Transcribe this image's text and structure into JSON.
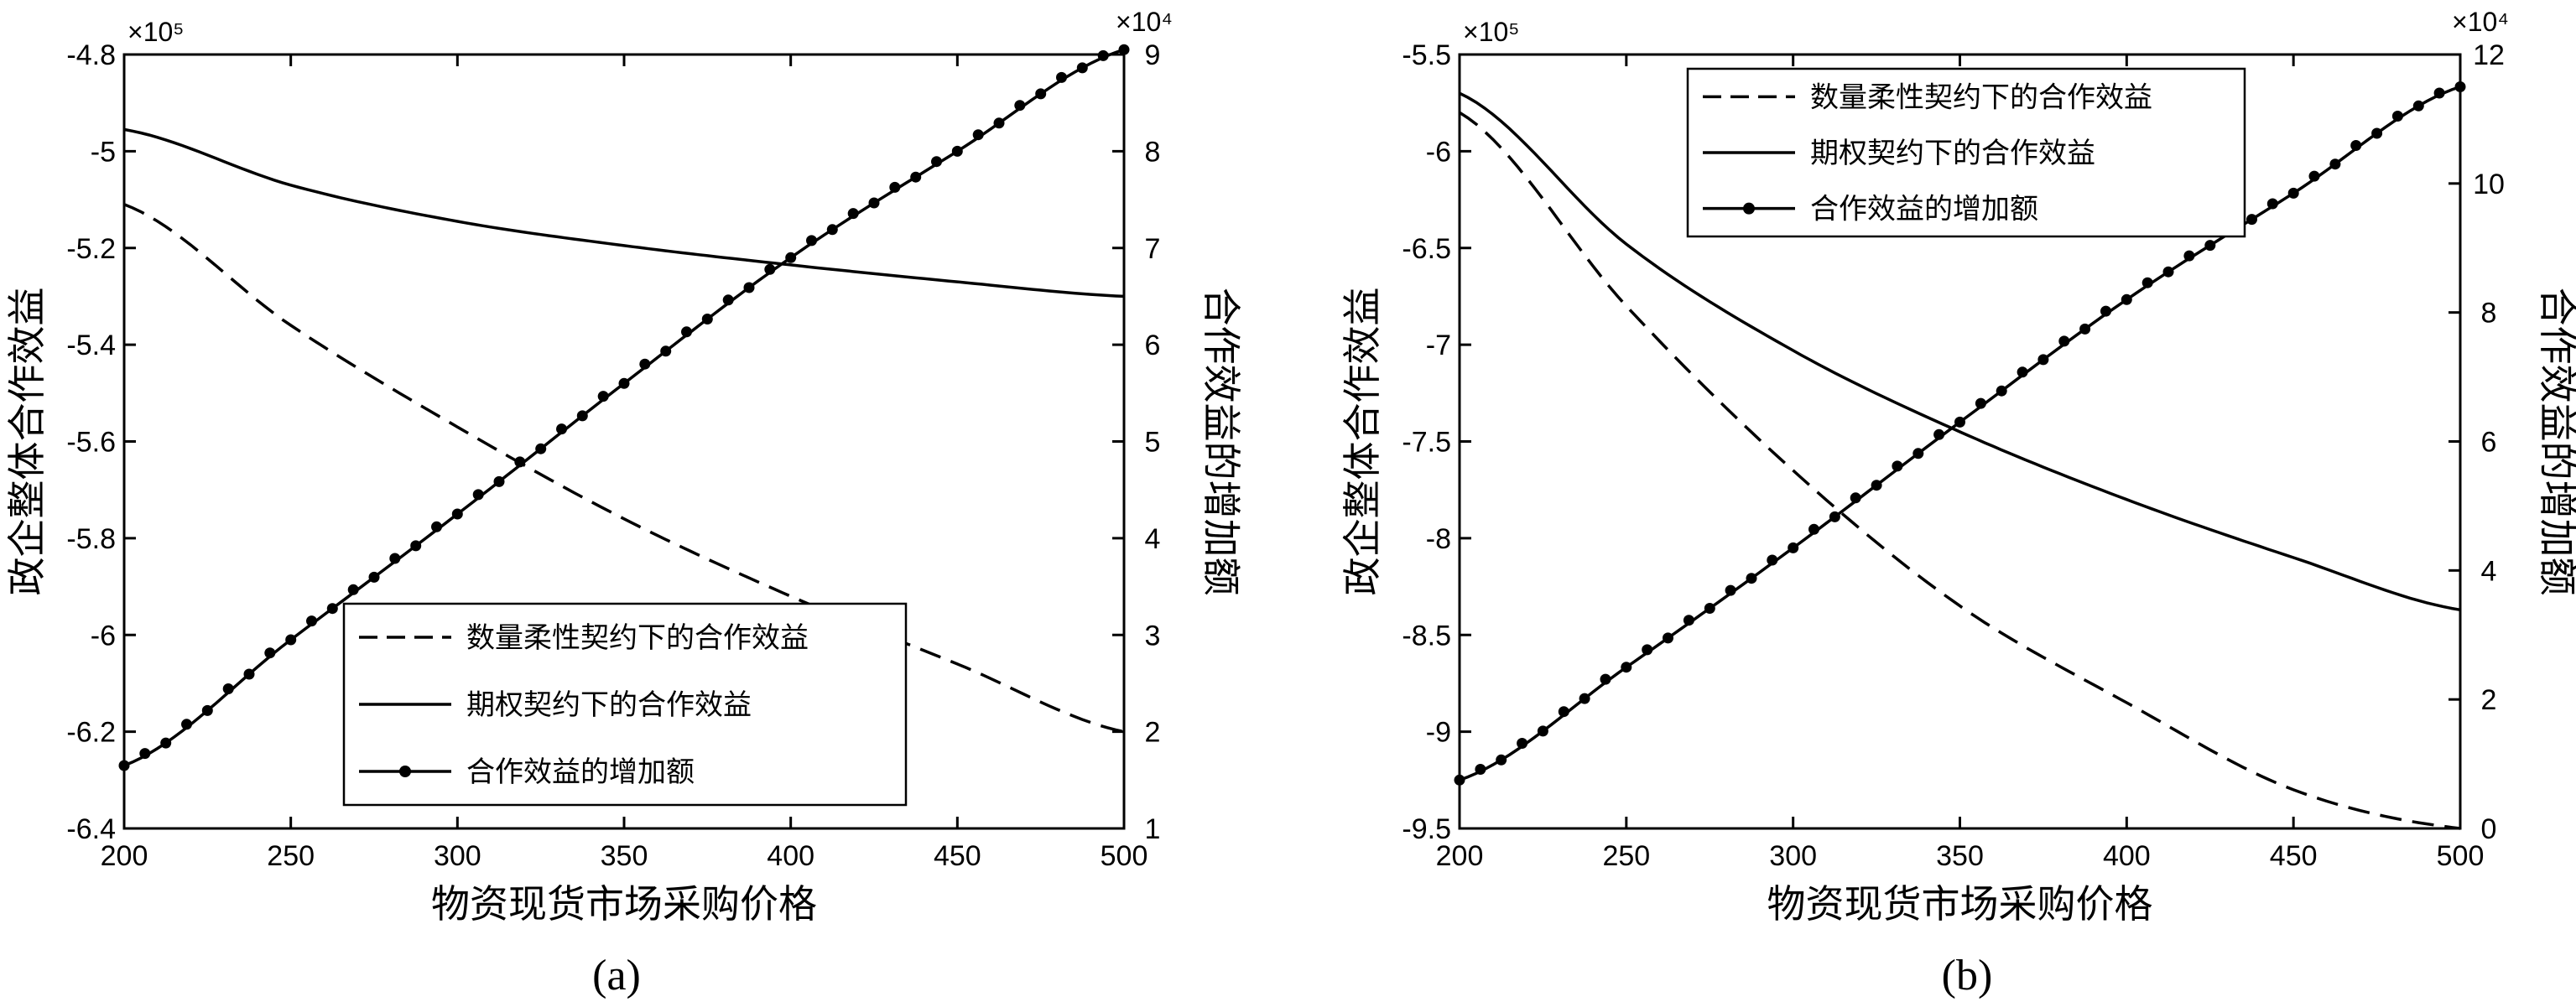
{
  "chart_data": [
    {
      "type": "line",
      "caption": "(a)",
      "xlabel": "物资现货市场采购价格",
      "ylabel_left": "政企整体合作效益",
      "ylabel_right": "合作效益的增加额",
      "left_multiplier": "×10⁵",
      "right_multiplier": "×10⁴",
      "xlim": [
        200,
        500
      ],
      "ylim_left": [
        -640000,
        -480000
      ],
      "ylim_right": [
        10000,
        90000
      ],
      "x_ticks": [
        200,
        250,
        300,
        350,
        400,
        450,
        500
      ],
      "x_tick_labels": [
        "200",
        "250",
        "300",
        "350",
        "400",
        "450",
        "500"
      ],
      "yleft_ticks": [
        -640000,
        -620000,
        -600000,
        -580000,
        -560000,
        -540000,
        -520000,
        -500000,
        -480000
      ],
      "yleft_tick_labels": [
        "-6.4",
        "-6.2",
        "-6",
        "-5.8",
        "-5.6",
        "-5.4",
        "-5.2",
        "-5",
        "-4.8"
      ],
      "yright_ticks": [
        10000,
        20000,
        30000,
        40000,
        50000,
        60000,
        70000,
        80000,
        90000
      ],
      "yright_tick_labels": [
        "1",
        "2",
        "3",
        "4",
        "5",
        "6",
        "7",
        "8",
        "9"
      ],
      "legend_position": "bottom-right",
      "series": [
        {
          "name": "数量柔性契约下的合作效益",
          "axis": "left",
          "style": "dashed",
          "x": [
            200,
            250,
            300,
            350,
            400,
            450,
            500
          ],
          "y": [
            -511000,
            -536000,
            -557000,
            -576000,
            -592000,
            -606000,
            -620000
          ]
        },
        {
          "name": "期权契约下的合作效益",
          "axis": "left",
          "style": "solid",
          "x": [
            200,
            250,
            300,
            350,
            400,
            450,
            500
          ],
          "y": [
            -495500,
            -507000,
            -514500,
            -519500,
            -523500,
            -527000,
            -530000
          ]
        },
        {
          "name": "合作效益的增加额",
          "axis": "right",
          "style": "solid-marker",
          "x": [
            200,
            250,
            300,
            350,
            400,
            450,
            500
          ],
          "y": [
            16500,
            29500,
            42500,
            56000,
            69000,
            80000,
            90500
          ]
        }
      ]
    },
    {
      "type": "line",
      "caption": "(b)",
      "xlabel": "物资现货市场采购价格",
      "ylabel_left": "政企整体合作效益",
      "ylabel_right": "合作效益的增加额",
      "left_multiplier": "×10⁵",
      "right_multiplier": "×10⁴",
      "xlim": [
        200,
        500
      ],
      "ylim_left": [
        -950000,
        -550000
      ],
      "ylim_right": [
        0,
        120000
      ],
      "x_ticks": [
        200,
        250,
        300,
        350,
        400,
        450,
        500
      ],
      "x_tick_labels": [
        "200",
        "250",
        "300",
        "350",
        "400",
        "450",
        "500"
      ],
      "yleft_ticks": [
        -950000,
        -900000,
        -850000,
        -800000,
        -750000,
        -700000,
        -650000,
        -600000,
        -550000
      ],
      "yleft_tick_labels": [
        "-9.5",
        "-9",
        "-8.5",
        "-8",
        "-7.5",
        "-7",
        "-6.5",
        "-6",
        "-5.5"
      ],
      "yright_ticks": [
        0,
        20000,
        40000,
        60000,
        80000,
        100000,
        120000
      ],
      "yright_tick_labels": [
        "0",
        "2",
        "4",
        "6",
        "8",
        "10",
        "12"
      ],
      "legend_position": "top-right",
      "series": [
        {
          "name": "数量柔性契约下的合作效益",
          "axis": "left",
          "style": "dashed",
          "x": [
            200,
            250,
            300,
            350,
            400,
            450,
            500
          ],
          "y": [
            -580000,
            -680000,
            -765000,
            -835000,
            -885000,
            -930000,
            -950000
          ]
        },
        {
          "name": "期权契约下的合作效益",
          "axis": "left",
          "style": "solid",
          "x": [
            200,
            250,
            300,
            350,
            400,
            450,
            500
          ],
          "y": [
            -570000,
            -648000,
            -703000,
            -745000,
            -780000,
            -810000,
            -837000
          ]
        },
        {
          "name": "合作效益的增加额",
          "axis": "right",
          "style": "solid-marker",
          "x": [
            200,
            250,
            300,
            350,
            400,
            450,
            500
          ],
          "y": [
            7500,
            25000,
            43500,
            63000,
            82000,
            98500,
            115000
          ]
        }
      ]
    }
  ]
}
